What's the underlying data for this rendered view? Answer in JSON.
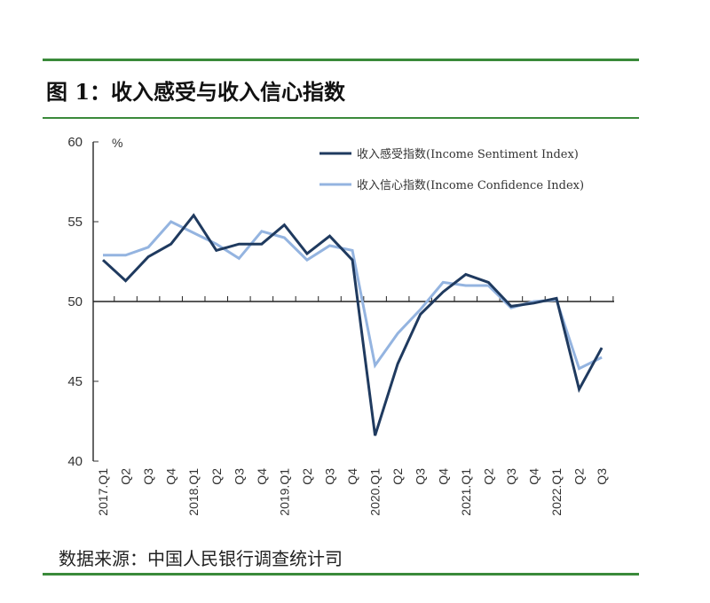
{
  "title": "图 1：收入感受与收入信心指数",
  "source": "数据来源：中国人民银行调查统计司",
  "chart_data": {
    "type": "line",
    "title": "图 1：收入感受与收入信心指数",
    "ylabel": "%",
    "ylim": [
      40,
      60
    ],
    "yticks": [
      40,
      45,
      50,
      55,
      60
    ],
    "categories": [
      "2017.Q1",
      "Q2",
      "Q3",
      "Q4",
      "2018.Q1",
      "Q2",
      "Q3",
      "Q4",
      "2019.Q1",
      "Q2",
      "Q3",
      "Q4",
      "2020.Q1",
      "Q2",
      "Q3",
      "Q4",
      "2021.Q1",
      "Q2",
      "Q3",
      "Q4",
      "2022.Q1",
      "Q2",
      "Q3"
    ],
    "legend_position": "top-right",
    "series": [
      {
        "name": "收入感受指数(Income Sentiment Index)",
        "color": "#1f3a5f",
        "values": [
          52.6,
          51.3,
          52.8,
          53.6,
          55.4,
          53.2,
          53.6,
          53.6,
          54.8,
          53.0,
          54.1,
          52.6,
          41.6,
          46.1,
          49.2,
          50.6,
          51.7,
          51.2,
          49.7,
          49.9,
          50.2,
          44.5,
          47.1
        ]
      },
      {
        "name": "收入信心指数(Income Confidence Index)",
        "color": "#94b4e0",
        "values": [
          52.9,
          52.9,
          53.4,
          55.0,
          54.3,
          53.6,
          52.7,
          54.4,
          54.0,
          52.6,
          53.5,
          53.2,
          46.0,
          48.0,
          49.5,
          51.2,
          51.0,
          51.0,
          49.6,
          50.0,
          50.1,
          45.8,
          46.5
        ]
      }
    ]
  }
}
